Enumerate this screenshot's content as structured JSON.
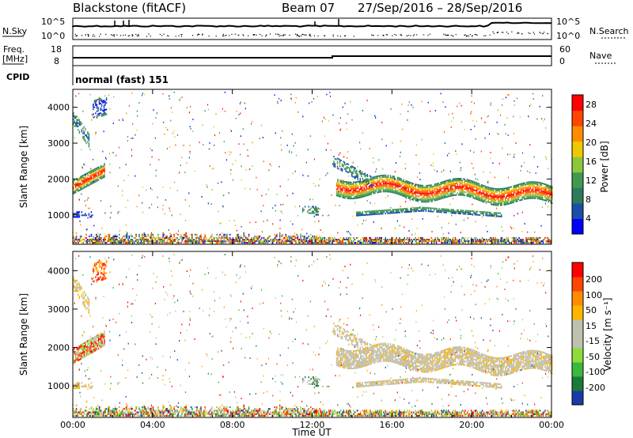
{
  "header": {
    "station": "Blackstone (fitACF)",
    "beam": "Beam 07",
    "date_range": "27/Sep/2016 – 28/Sep/2016"
  },
  "ancillary": {
    "nsky_label": "N.Sky",
    "nsearch_label": "N.Search",
    "freq_label": "Freq.",
    "freq_unit": "[MHz]",
    "nave_label": "Nave",
    "cpid_label": "CPID",
    "cpid_value": "normal (fast) 151",
    "noise_ticks": [
      "10^5",
      "10^0"
    ],
    "freq_ticks": [
      "18",
      "8"
    ],
    "nave_ticks": [
      "60",
      "0"
    ]
  },
  "colors": {
    "power": [
      "#0000ff",
      "#1a4ea8",
      "#2e7a5a",
      "#3f9a50",
      "#8cc83c",
      "#f0c800",
      "#ff8c00",
      "#ff4500",
      "#ff0000"
    ],
    "velocity": [
      "#1a3aa8",
      "#1a7a3a",
      "#3cb83c",
      "#8cdc3c",
      "#c0c0b0",
      "#c0c0b0",
      "#ffb400",
      "#ff8c00",
      "#ff4500",
      "#ff0000"
    ]
  },
  "chart_data": [
    {
      "type": "heatmap",
      "name": "power",
      "ylabel": "Slant Range [km]",
      "xlabel": "",
      "ylim": [
        180,
        4500
      ],
      "yticks": [
        1000,
        2000,
        3000,
        4000
      ],
      "colorbar": {
        "label": "Power [dB]",
        "ticks": [
          "4",
          "8",
          "12",
          "16",
          "20",
          "24",
          "28"
        ],
        "range": [
          0,
          30
        ]
      }
    },
    {
      "type": "heatmap",
      "name": "velocity",
      "ylabel": "Slant Range [km]",
      "xlabel": "Time UT",
      "ylim": [
        180,
        4500
      ],
      "yticks": [
        1000,
        2000,
        3000,
        4000
      ],
      "xticks": [
        "00:00",
        "04:00",
        "08:00",
        "12:00",
        "16:00",
        "20:00",
        "00:00"
      ],
      "colorbar": {
        "label": "Velocity [m s⁻¹]",
        "ticks": [
          "200",
          "100",
          "50",
          "15",
          "-15",
          "-50",
          "-100",
          "-200"
        ]
      }
    }
  ]
}
